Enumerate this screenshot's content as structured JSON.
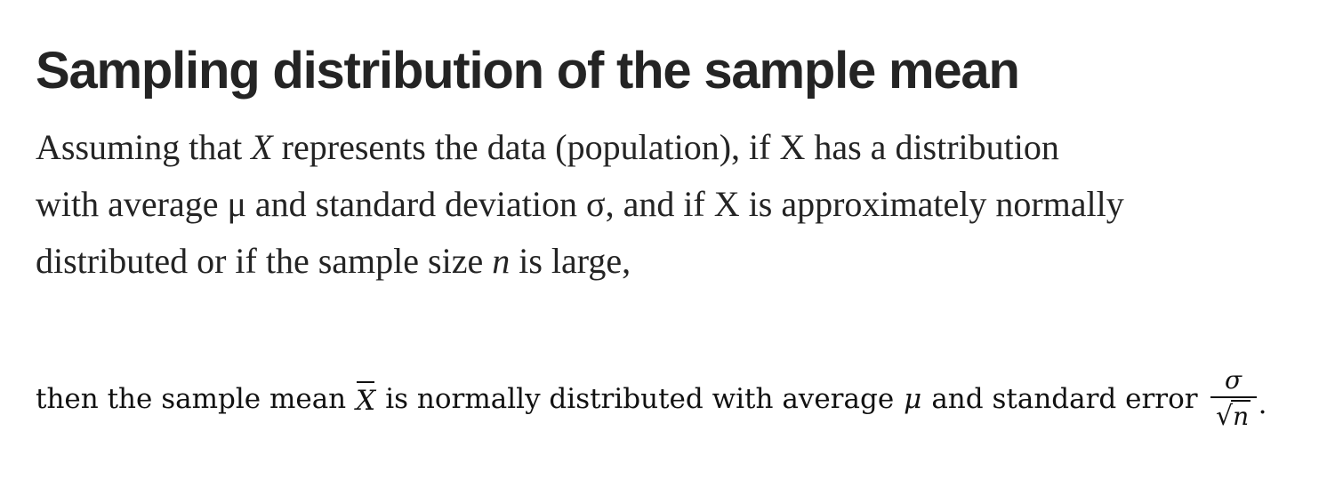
{
  "heading": "Sampling distribution of the sample mean",
  "paragraph": {
    "line1_a": "Assuming that ",
    "line1_var": "X",
    "line1_b": " represents the data (population), if X has a distribution",
    "line2": "with average μ and standard deviation σ, and if X is approximately normally",
    "line3_a": "distributed or if the sample size ",
    "line3_var": "n",
    "line3_b": " is large,"
  },
  "formula": {
    "text_a": "then the sample mean",
    "xbar": "X",
    "text_b": "is normally distributed with average",
    "mu": "μ",
    "text_c": "and standard error",
    "numerator": "σ",
    "radical": "√",
    "radicand": "n",
    "end": "."
  }
}
